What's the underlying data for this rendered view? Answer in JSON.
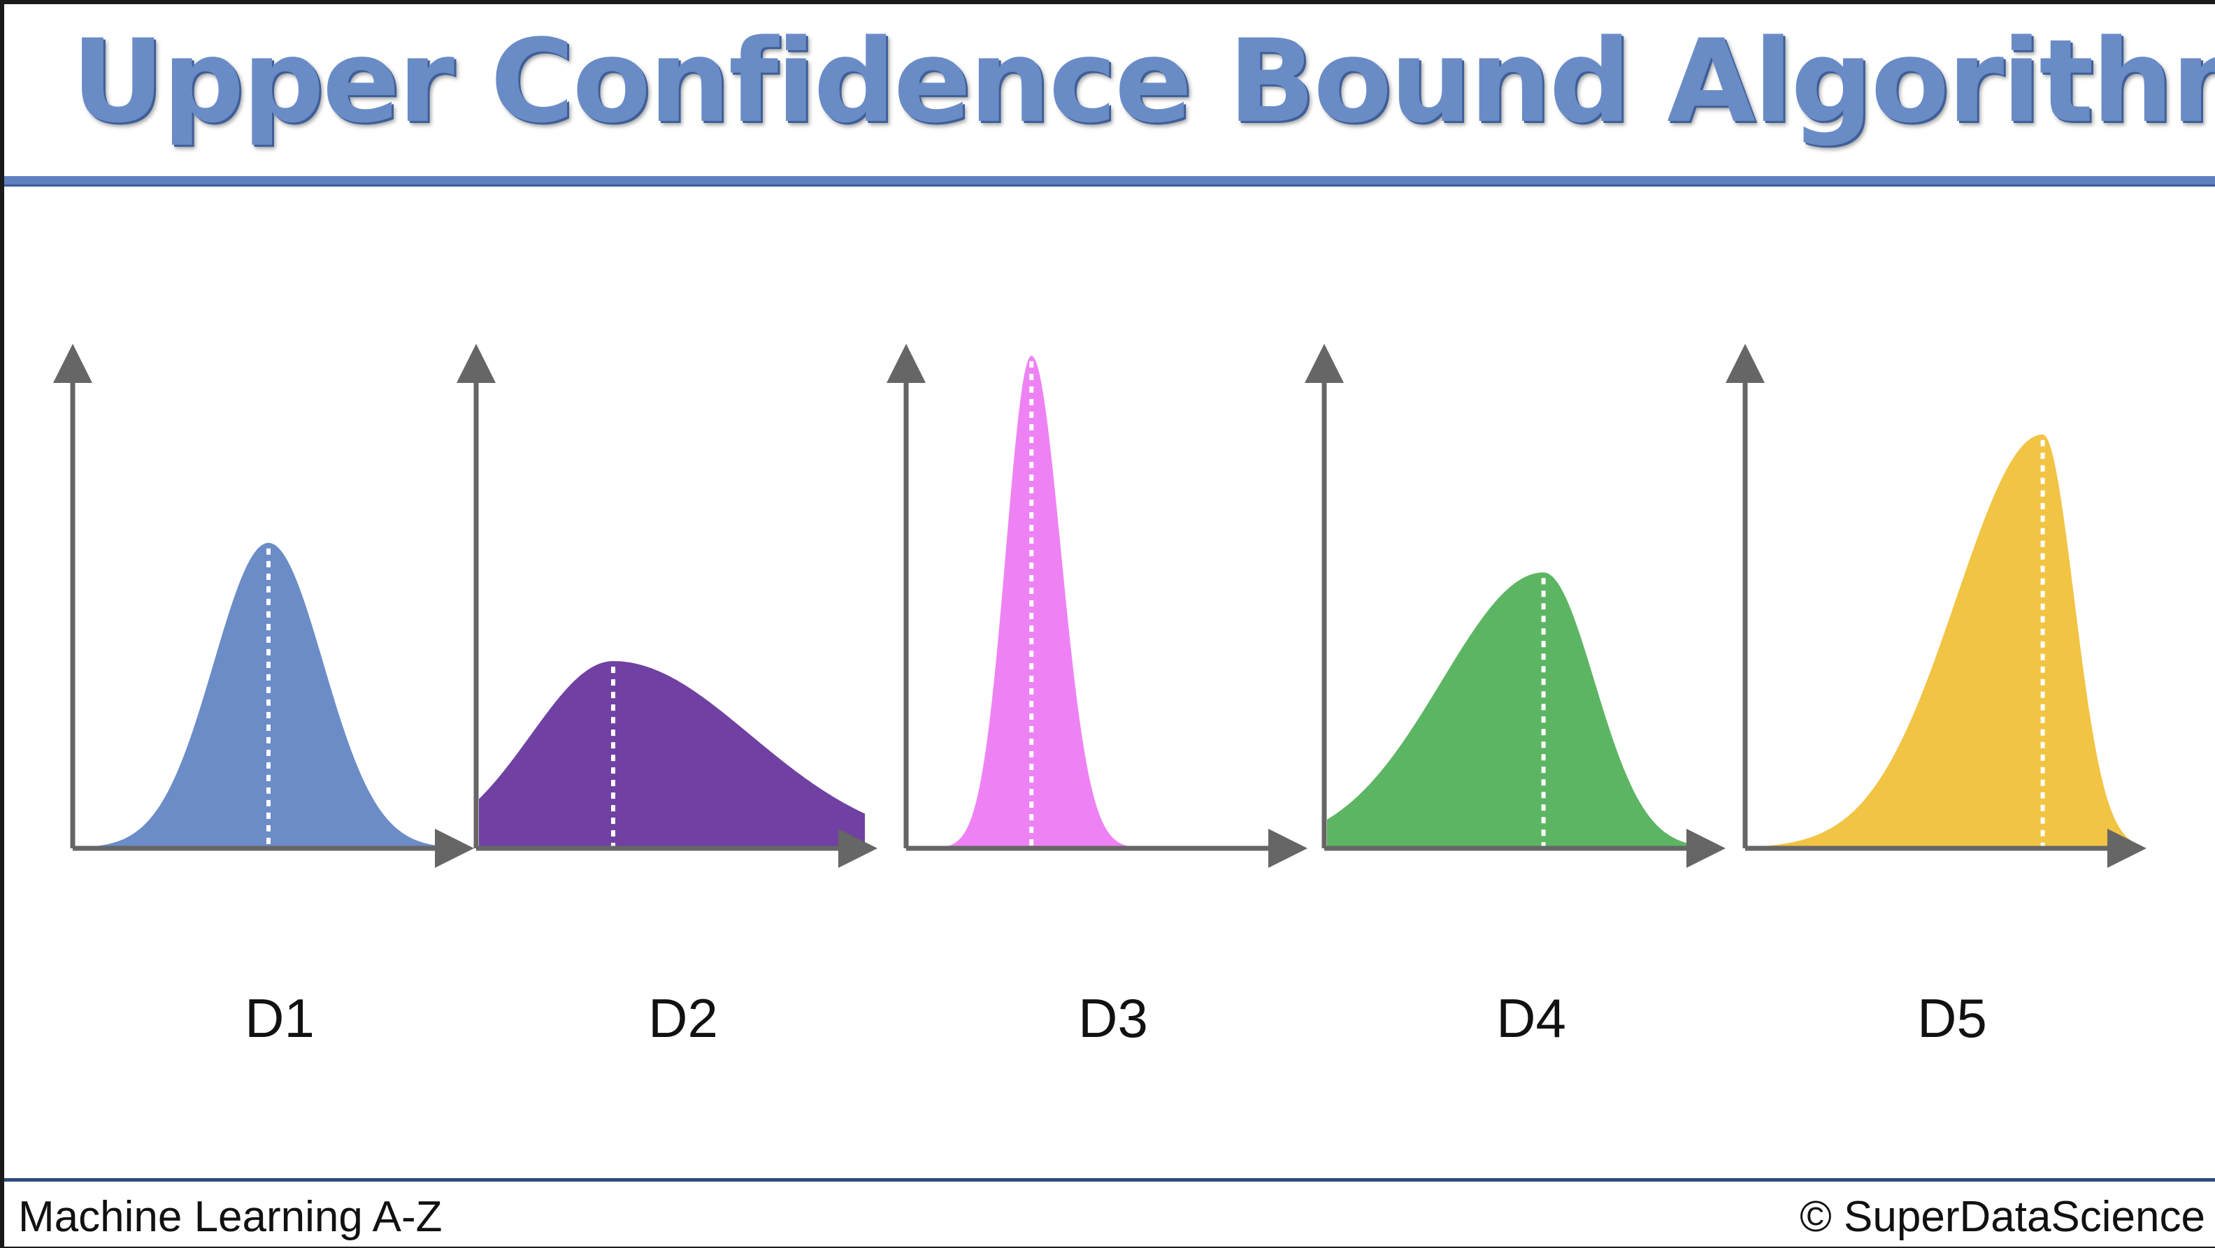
{
  "slide": {
    "title": "Upper Confidence Bound Algorithm",
    "footer_left": "Machine Learning A-Z",
    "footer_right": "© SuperDataScience"
  },
  "distributions": [
    {
      "label": "D1",
      "color": "#6b8cc7",
      "peak_position": 0.5,
      "peak_height": 0.62,
      "left_spread": 0.14,
      "right_spread": 0.14,
      "shape": "symmetric"
    },
    {
      "label": "D2",
      "color": "#7040a2",
      "peak_position": 0.35,
      "peak_height": 0.38,
      "left_spread": 0.21,
      "right_spread": 0.35,
      "shape": "right-skewed"
    },
    {
      "label": "D3",
      "color": "#ee82f4",
      "peak_position": 0.32,
      "peak_height": 1.0,
      "left_spread": 0.065,
      "right_spread": 0.075,
      "shape": "narrow"
    },
    {
      "label": "D4",
      "color": "#5cb562",
      "peak_position": 0.56,
      "peak_height": 0.56,
      "left_spread": 0.26,
      "right_spread": 0.13,
      "shape": "left-skewed"
    },
    {
      "label": "D5",
      "color": "#f1c443",
      "peak_position": 0.76,
      "peak_height": 0.84,
      "left_spread": 0.22,
      "right_spread": 0.08,
      "shape": "left-skewed"
    }
  ]
}
